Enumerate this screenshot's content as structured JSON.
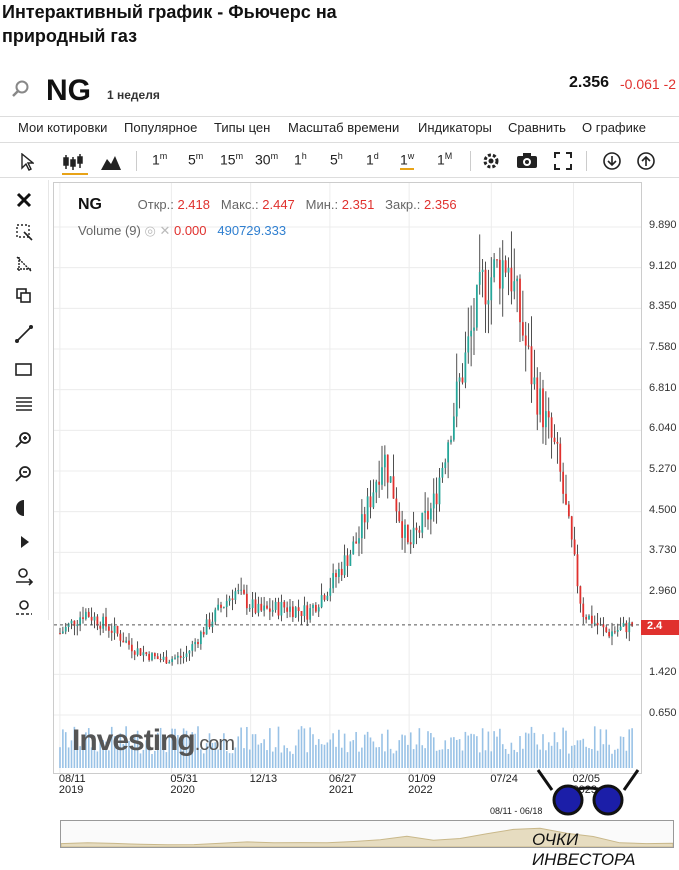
{
  "page": {
    "title": "Интерактивный график - Фьючерс на природный газ"
  },
  "header": {
    "symbol": "NG",
    "period": "1 неделя",
    "price": "2.356",
    "change": "-0.061 -2"
  },
  "menu": [
    "Мои котировки",
    "Популярное",
    "Типы цен",
    "Масштаб времени",
    "Индикаторы",
    "Сравнить",
    "О графике"
  ],
  "toolbar": {
    "timeframes": [
      {
        "main": "1",
        "sup": "m"
      },
      {
        "main": "5",
        "sup": "m"
      },
      {
        "main": "15",
        "sup": "m"
      },
      {
        "main": "30",
        "sup": "m"
      },
      {
        "main": "1",
        "sup": "h"
      },
      {
        "main": "5",
        "sup": "h"
      },
      {
        "main": "1",
        "sup": "d"
      },
      {
        "main": "1",
        "sup": "w"
      },
      {
        "main": "1",
        "sup": "M"
      }
    ],
    "active_timeframe": "1w"
  },
  "legend": {
    "symbol": "NG",
    "open_label": "Откр.:",
    "open": "2.418",
    "high_label": "Макс.:",
    "high": "2.447",
    "low_label": "Мин.:",
    "low": "2.351",
    "close_label": "Закр.:",
    "close": "2.356",
    "volume_label": "Volume (9)",
    "volume_value": "0.000",
    "volume_ma": "490729.333"
  },
  "logo": {
    "brand": "Investing",
    "suffix": ".com"
  },
  "price_tag": "2.4",
  "navigator_range": "08/11 - 06/18",
  "watermark": "ОЧКИ ИНВЕСТОРА",
  "colors": {
    "up": "#26a69a",
    "down": "#e0312e",
    "volume": "#7fb3e0",
    "accent": "#e8a317"
  },
  "chart_data": {
    "type": "line",
    "title": "NG",
    "y_ticks": [
      "9.890",
      "9.120",
      "8.350",
      "7.580",
      "6.810",
      "6.040",
      "5.270",
      "4.500",
      "3.730",
      "2.960",
      "1.420",
      "0.650"
    ],
    "ylim": [
      0.65,
      9.89
    ],
    "x_ticks": [
      {
        "date": "08/11",
        "year": "2019"
      },
      {
        "date": "05/31",
        "year": "2020"
      },
      {
        "date": "12/13",
        "year": ""
      },
      {
        "date": "06/27",
        "year": "2021"
      },
      {
        "date": "01/09",
        "year": "2022"
      },
      {
        "date": "07/24",
        "year": ""
      },
      {
        "date": "02/05",
        "year": "2023"
      }
    ],
    "x": [
      "2019-08",
      "2019-10",
      "2019-12",
      "2020-02",
      "2020-04",
      "2020-06",
      "2020-08",
      "2020-10",
      "2020-12",
      "2021-02",
      "2021-04",
      "2021-06",
      "2021-08",
      "2021-10",
      "2021-12",
      "2022-02",
      "2022-04",
      "2022-06",
      "2022-08",
      "2022-10",
      "2022-12",
      "2023-02",
      "2023-04",
      "2023-06"
    ],
    "close": [
      2.2,
      2.6,
      2.3,
      1.9,
      1.7,
      1.75,
      2.4,
      3.0,
      2.6,
      2.7,
      2.6,
      3.2,
      4.0,
      5.6,
      3.8,
      4.6,
      6.8,
      8.8,
      9.3,
      7.0,
      5.5,
      2.6,
      2.2,
      2.356
    ],
    "reference_line": 2.356
  }
}
